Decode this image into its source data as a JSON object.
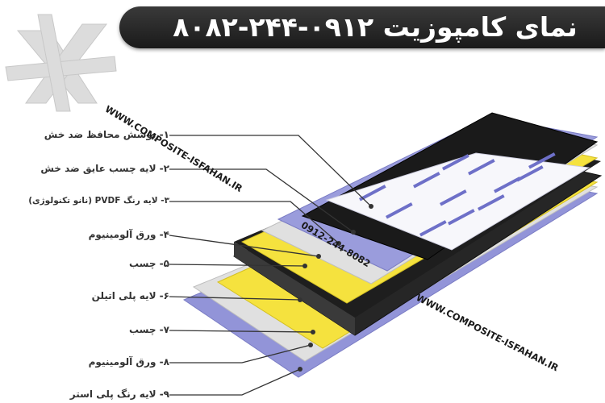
{
  "banner": {
    "title": "نمای کامپوزیت ۰۹۱۲-۲۴۴-۸۰۸۲"
  },
  "watermarks": {
    "website_1": "WWW.COMPOSITE-ISFAHAN.IR",
    "phone": "0912-244-8082",
    "website_2": "WWW.COMPOSITE-ISFAHAN.IR"
  },
  "layers": [
    {
      "label": "۱- پوشش محافظ ضد خش"
    },
    {
      "label": "۲- لایه چسب عایق ضد خش"
    },
    {
      "label": "۳- لایه رنگ PVDF (نانو تکنولوژی)"
    },
    {
      "label": "۴- ورق آلومینیوم"
    },
    {
      "label": "۵- چسب"
    },
    {
      "label": "۶- لایه پلی اتیلن"
    },
    {
      "label": "۷- چسب"
    },
    {
      "label": "۸- ورق آلومینیوم"
    },
    {
      "label": "۹- لایه رنگ پلی استر"
    }
  ],
  "colors": {
    "banner_bg": "#222222",
    "lavender": "#8f91d6",
    "yellow": "#f4e03c",
    "black": "#1c1c1c",
    "silver": "#d4d4d4"
  }
}
